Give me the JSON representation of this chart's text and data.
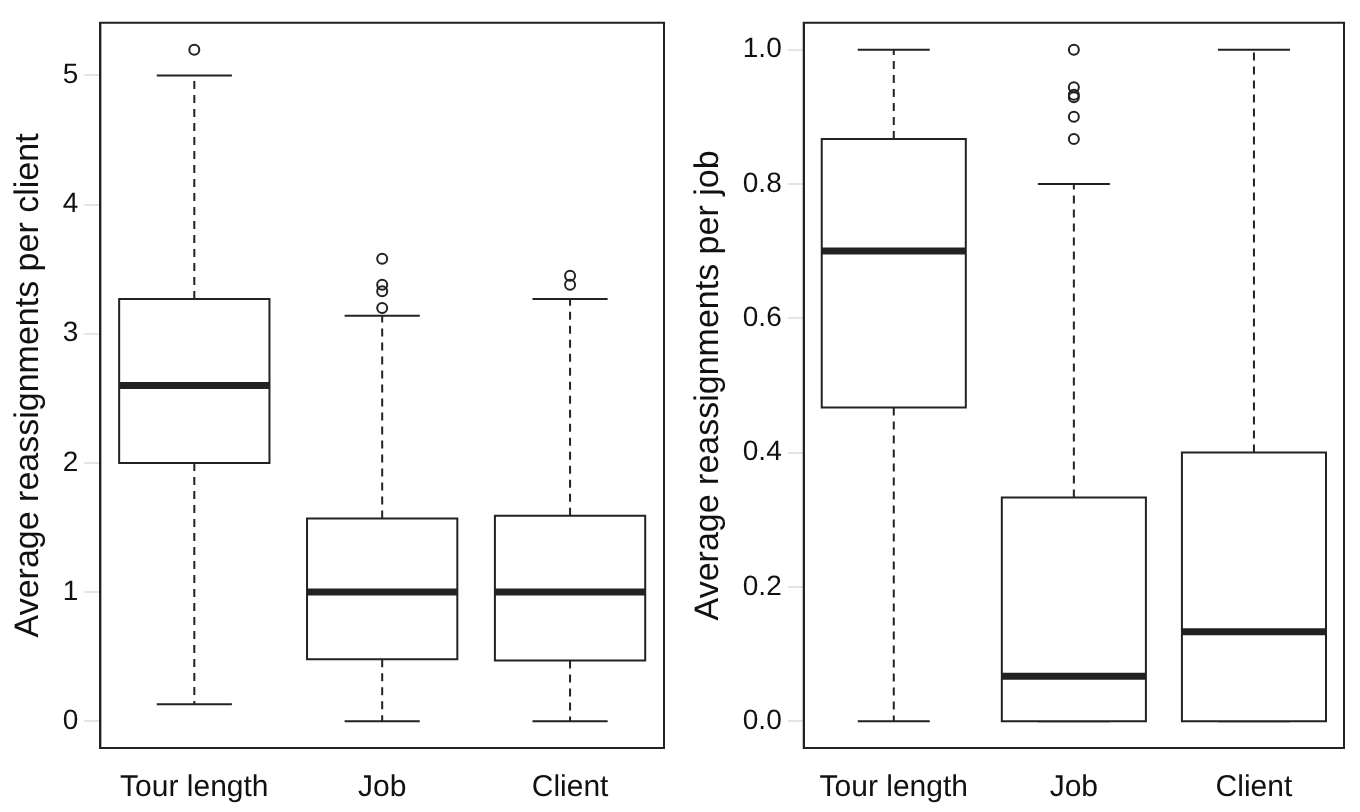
{
  "chart_data": [
    {
      "type": "box",
      "ylabel": "Average reassignments per client",
      "categories": [
        "Tour length",
        "Job",
        "Client"
      ],
      "ylim": [
        -0.208,
        5.408
      ],
      "yticks": [
        0,
        1,
        2,
        3,
        4,
        5
      ],
      "grid": false,
      "legend": false,
      "boxes": [
        {
          "low": 0.13,
          "q1": 2.0,
          "median": 2.6,
          "q3": 3.27,
          "high": 5.0,
          "outliers": [
            5.2
          ]
        },
        {
          "low": 0,
          "q1": 0.48,
          "median": 1.0,
          "q3": 1.57,
          "high": 3.14,
          "outliers": [
            3.2,
            3.33,
            3.38,
            3.58
          ]
        },
        {
          "low": 0,
          "q1": 0.47,
          "median": 1.0,
          "q3": 1.59,
          "high": 3.27,
          "outliers": [
            3.38,
            3.45
          ]
        }
      ]
    },
    {
      "type": "box",
      "ylabel": "Average reassignments per job",
      "categories": [
        "Tour length",
        "Job",
        "Client"
      ],
      "ylim": [
        -0.04,
        1.04
      ],
      "yticks": [
        {
          "value": 0,
          "label": "0.0"
        },
        0.2,
        0.4,
        0.6,
        0.8,
        {
          "value": 1,
          "label": "1.0"
        }
      ],
      "grid": false,
      "legend": false,
      "boxes": [
        {
          "low": 0,
          "q1": 0.467,
          "median": 0.7,
          "q3": 0.867,
          "high": 1.0
        },
        {
          "low": 0,
          "q1": 0,
          "median": 0.067,
          "q3": 0.333,
          "high": 0.8,
          "outliers": [
            0.867,
            0.9,
            0.929,
            0.933,
            0.944,
            1.0
          ]
        },
        {
          "low": 0,
          "q1": 0,
          "median": 0.133,
          "q3": 0.4,
          "high": 1.0
        }
      ]
    }
  ]
}
